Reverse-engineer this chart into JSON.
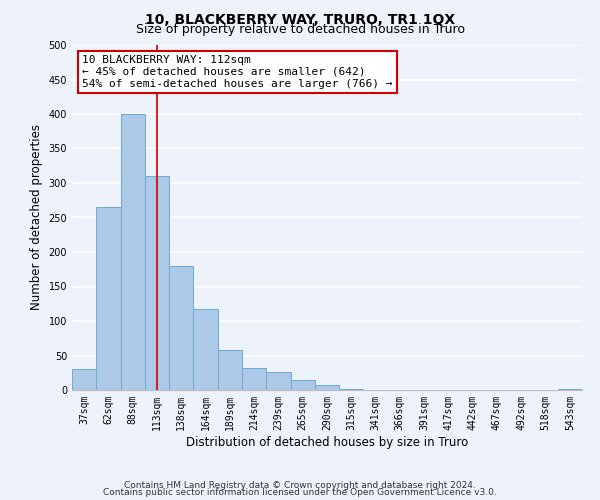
{
  "title": "10, BLACKBERRY WAY, TRURO, TR1 1QX",
  "subtitle": "Size of property relative to detached houses in Truro",
  "xlabel": "Distribution of detached houses by size in Truro",
  "ylabel": "Number of detached properties",
  "bar_labels": [
    "37sqm",
    "62sqm",
    "88sqm",
    "113sqm",
    "138sqm",
    "164sqm",
    "189sqm",
    "214sqm",
    "239sqm",
    "265sqm",
    "290sqm",
    "315sqm",
    "341sqm",
    "366sqm",
    "391sqm",
    "417sqm",
    "442sqm",
    "467sqm",
    "492sqm",
    "518sqm",
    "543sqm"
  ],
  "bar_values": [
    30,
    265,
    400,
    310,
    180,
    117,
    58,
    32,
    26,
    15,
    7,
    1,
    0,
    0,
    0,
    0,
    0,
    0,
    0,
    0,
    2
  ],
  "bar_color": "#adc9e8",
  "bar_edgecolor": "#6aaad4",
  "vline_x": 3,
  "vline_color": "#cc0000",
  "annotation_line1": "10 BLACKBERRY WAY: 112sqm",
  "annotation_line2": "← 45% of detached houses are smaller (642)",
  "annotation_line3": "54% of semi-detached houses are larger (766) →",
  "annotation_box_edgecolor": "#cc0000",
  "ylim": [
    0,
    500
  ],
  "yticks": [
    0,
    50,
    100,
    150,
    200,
    250,
    300,
    350,
    400,
    450,
    500
  ],
  "footnote1": "Contains HM Land Registry data © Crown copyright and database right 2024.",
  "footnote2": "Contains public sector information licensed under the Open Government Licence v3.0.",
  "bg_color": "#eef2fa",
  "grid_color": "white",
  "title_fontsize": 10,
  "subtitle_fontsize": 9,
  "label_fontsize": 8.5,
  "tick_fontsize": 7,
  "annot_fontsize": 8,
  "footnote_fontsize": 6.5
}
